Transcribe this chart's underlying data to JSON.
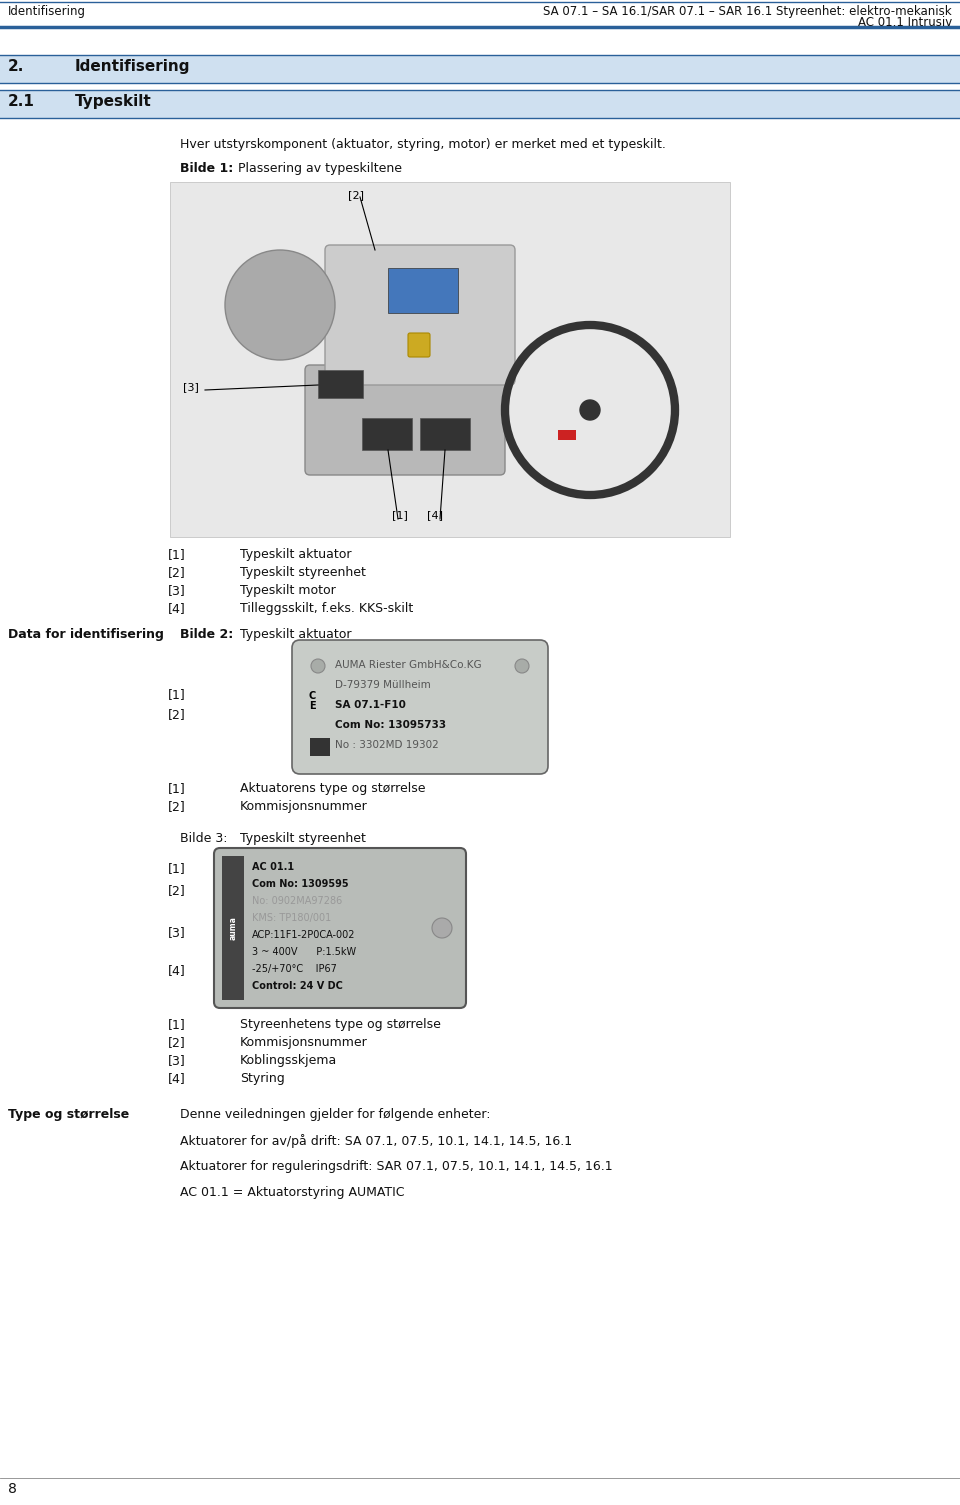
{
  "page_width": 9.6,
  "page_height": 15.05,
  "bg_color": "#ffffff",
  "header_line_color": "#2a6099",
  "header_text_top": "SA 07.1 – SA 16.1/SAR 07.1 – SAR 16.1 Styreenhet: elektro-mekanisk",
  "header_text_left": "Identifisering",
  "header_text_right": "AC 01.1 Intrusiv",
  "section_bg": "#cfe0f0",
  "section_num": "2.",
  "section_title": "Identifisering",
  "subsection_num": "2.1",
  "subsection_title": "Typeskilt",
  "intro_text": "Hver utstyrskomponent (aktuator, styring, motor) er merket med et typeskilt.",
  "bilde1_label": "Bilde 1:",
  "bilde1_caption": "Plassering av typeskiltene",
  "bilde1_items_num": [
    "[1]",
    "[2]",
    "[3]",
    "[4]"
  ],
  "bilde1_items_txt": [
    "Typeskilt aktuator",
    "Typeskilt styreenhet",
    "Typeskilt motor",
    "Tilleggsskilt, f.eks. KKS-skilt"
  ],
  "data_id_label": "Data for identifisering",
  "bilde2_label": "Bilde 2:",
  "bilde2_caption": "Typeskilt aktuator",
  "bilde2_plate_lines": [
    "AUMA Riester GmbH&Co.KG",
    "D-79379 Müllheim",
    "SA 07.1-F10",
    "Com No: 13095733",
    "No : 3302MD 19302"
  ],
  "bilde2_bold_lines": [
    2,
    3
  ],
  "bilde2_items_num": [
    "[1]",
    "[2]"
  ],
  "bilde2_items_txt": [
    "Aktuatorens type og størrelse",
    "Kommisjonsnummer"
  ],
  "bilde3_label": "Bilde 3:",
  "bilde3_caption": "Typeskilt styreenhet",
  "bilde3_plate_lines": [
    "AC 01.1",
    "Com No: 1309595",
    "No: 0902MA97286",
    "KMS: TP180/001",
    "ACP:11F1-2P0CA-002",
    "3 ~ 400V      P:1.5kW",
    "-25/+70°C    IP67",
    "Control: 24 V DC"
  ],
  "bilde3_bold_lines": [
    0,
    1,
    7
  ],
  "bilde3_items_num": [
    "[1]",
    "[2]",
    "[3]",
    "[4]"
  ],
  "bilde3_items_txt": [
    "Styreenhetens type og størrelse",
    "Kommisjonsnummer",
    "Koblingsskjema",
    "Styring"
  ],
  "type_label": "Type og størrelse",
  "type_text1": "Denne veiledningen gjelder for følgende enheter:",
  "type_text2": "Aktuatorer for av/på drift: SA 07.1, 07.5, 10.1, 14.1, 14.5, 16.1",
  "type_text3": "Aktuatorer for reguleringsdrift: SAR 07.1, 07.5, 10.1, 14.1, 14.5, 16.1",
  "type_text4": "AC 01.1 = Aktuatorstyring AUMATIC",
  "footer_text": "8",
  "img_placeholder_color": "#e8e8e8",
  "plate2_bg": "#c8ccc8",
  "plate3_bg": "#b8bcb8"
}
